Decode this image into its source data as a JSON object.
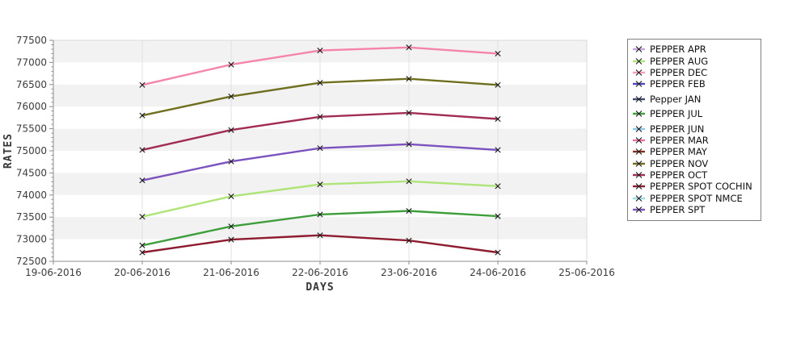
{
  "chart_data": {
    "type": "line",
    "title": "",
    "xlabel": "DAYS",
    "ylabel": "RATES",
    "x_axis_tick_labels": [
      "19-06-2016",
      "20-06-2016",
      "21-06-2016",
      "22-06-2016",
      "23-06-2016",
      "24-06-2016",
      "25-06-2016"
    ],
    "x_categories": [
      "20-06-2016",
      "21-06-2016",
      "22-06-2016",
      "23-06-2016",
      "24-06-2016"
    ],
    "ylim": [
      72500,
      77500
    ],
    "y_major_step": 500,
    "y_minor_step": 100,
    "grid": {
      "band_color": "#f2f2f2",
      "band_alt_color": "#ffffff",
      "vline_color": "#e0e0e0",
      "border_color": "#d9d9d9",
      "axis_color": "#8c8c8c",
      "marker_shape": "x",
      "marker_color": "#1a1a1a"
    },
    "series": [
      {
        "name": "PEPPER MAR",
        "color": "#f583ac",
        "values": [
          76490,
          76950,
          77270,
          77340,
          77200
        ]
      },
      {
        "name": "PEPPER NOV",
        "color": "#6f6f1f",
        "values": [
          75800,
          76230,
          76540,
          76630,
          76490
        ]
      },
      {
        "name": "PEPPER OCT",
        "color": "#a12d52",
        "values": [
          75020,
          75470,
          75770,
          75860,
          75720
        ]
      },
      {
        "name": "PEPPER SPT",
        "color": "#7b52be",
        "values": [
          74330,
          74760,
          75060,
          75150,
          75020
        ]
      },
      {
        "name": "PEPPER AUG",
        "color": "#aee478",
        "values": [
          73510,
          73970,
          74240,
          74310,
          74200
        ]
      },
      {
        "name": "PEPPER JUL",
        "color": "#3f9e3c",
        "values": [
          72860,
          73290,
          73560,
          73640,
          73520
        ]
      },
      {
        "name": "PEPPER SPOT COCHIN",
        "color": "#8e1c30",
        "values": [
          72700,
          72990,
          73090,
          72970,
          72700
        ]
      }
    ],
    "legend": {
      "position": "right",
      "items": [
        {
          "label": "PEPPER APR",
          "color": "#c7a3dc",
          "spaced": false
        },
        {
          "label": "PEPPER AUG",
          "color": "#aee478",
          "spaced": false
        },
        {
          "label": "PEPPER DEC",
          "color": "#f4a0b4",
          "spaced": false
        },
        {
          "label": "PEPPER FEB",
          "color": "#4c44c8",
          "spaced": false
        },
        {
          "label": "Pepper JAN",
          "color": "#3f4a70",
          "spaced": true
        },
        {
          "label": "PEPPER JUL",
          "color": "#3f9e3c",
          "spaced": true
        },
        {
          "label": "PEPPER JUN",
          "color": "#8cc8e8",
          "spaced": true
        },
        {
          "label": "PEPPER MAR",
          "color": "#f06ca4",
          "spaced": false
        },
        {
          "label": "PEPPER MAY",
          "color": "#84301c",
          "spaced": false
        },
        {
          "label": "PEPPER NOV",
          "color": "#6f6f1f",
          "spaced": false
        },
        {
          "label": "PEPPER OCT",
          "color": "#a42d52",
          "spaced": false
        },
        {
          "label": "PEPPER SPOT COCHIN",
          "color": "#8e1c30",
          "spaced": false
        },
        {
          "label": "PEPPER SPOT NMCE",
          "color": "#9adce4",
          "spaced": false
        },
        {
          "label": "PEPPER SPT",
          "color": "#7b52be",
          "spaced": false
        }
      ]
    }
  }
}
